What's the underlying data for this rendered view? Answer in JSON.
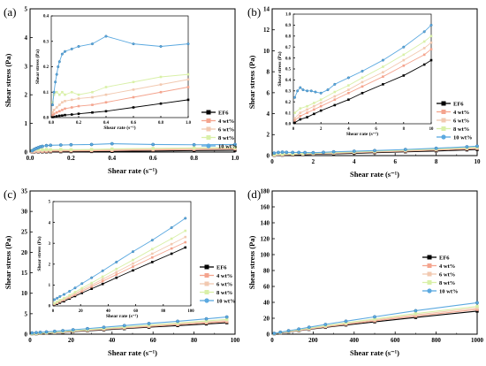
{
  "colors": {
    "EF6": "#000000",
    "4 wt%": "#f4a48e",
    "6 wt%": "#f2c9b0",
    "8 wt%": "#d9f0a8",
    "10 wt%": "#5ba9e0"
  },
  "legend_items": [
    "EF6",
    "4 wt%",
    "6 wt%",
    "8 wt%",
    "10 wt%"
  ],
  "chart_data": [
    {
      "panel": "(a)",
      "type": "line",
      "xlabel": "Shear rate (s⁻¹)",
      "ylabel": "Shear stress (Pa)",
      "xlim": [
        0,
        1.0
      ],
      "ylim": [
        0,
        5.5
      ],
      "xticks": [
        "0.0",
        "0.2",
        "0.4",
        "0.6",
        "0.8",
        "1.0"
      ],
      "yticks": [
        "0",
        "1",
        "2",
        "3",
        "4",
        "5"
      ],
      "series": [
        {
          "name": "EF6",
          "x": [
            0.01,
            0.02,
            0.04,
            0.06,
            0.08,
            0.1,
            0.15,
            0.2,
            0.3,
            0.4,
            0.6,
            0.8,
            1.0
          ],
          "y": [
            0.002,
            0.003,
            0.005,
            0.007,
            0.008,
            0.01,
            0.012,
            0.015,
            0.02,
            0.025,
            0.04,
            0.055,
            0.07
          ]
        },
        {
          "name": "4 wt%",
          "x": [
            0.01,
            0.02,
            0.04,
            0.06,
            0.08,
            0.1,
            0.15,
            0.2,
            0.3,
            0.4,
            0.6,
            0.8,
            1.0
          ],
          "y": [
            0.01,
            0.015,
            0.02,
            0.025,
            0.03,
            0.035,
            0.04,
            0.045,
            0.05,
            0.06,
            0.08,
            0.1,
            0.12
          ]
        },
        {
          "name": "6 wt%",
          "x": [
            0.01,
            0.02,
            0.04,
            0.06,
            0.08,
            0.1,
            0.15,
            0.2,
            0.3,
            0.4,
            0.6,
            0.8,
            1.0
          ],
          "y": [
            0.02,
            0.03,
            0.04,
            0.05,
            0.06,
            0.065,
            0.07,
            0.075,
            0.08,
            0.09,
            0.11,
            0.13,
            0.15
          ]
        },
        {
          "name": "8 wt%",
          "x": [
            0.01,
            0.02,
            0.04,
            0.06,
            0.08,
            0.1,
            0.15,
            0.2,
            0.3,
            0.4,
            0.6,
            0.8,
            1.0
          ],
          "y": [
            0.06,
            0.09,
            0.1,
            0.09,
            0.1,
            0.09,
            0.1,
            0.09,
            0.1,
            0.12,
            0.14,
            0.16,
            0.17
          ]
        },
        {
          "name": "10 wt%",
          "x": [
            0.01,
            0.02,
            0.03,
            0.04,
            0.05,
            0.06,
            0.08,
            0.1,
            0.15,
            0.2,
            0.3,
            0.4,
            0.6,
            0.8,
            1.0
          ],
          "y": [
            0.05,
            0.1,
            0.14,
            0.17,
            0.2,
            0.22,
            0.25,
            0.26,
            0.27,
            0.28,
            0.29,
            0.32,
            0.29,
            0.28,
            0.29
          ]
        }
      ],
      "inset": {
        "xlabel": "Shear rate (s⁻¹)",
        "ylabel": "Shear stress (Pa)",
        "xlim": [
          0,
          1.0
        ],
        "ylim": [
          0,
          0.4
        ],
        "xticks": [
          "0.0",
          "0.2",
          "0.4",
          "0.6",
          "0.8",
          "1.0"
        ],
        "yticks": [
          "0.0",
          "0.1",
          "0.2",
          "0.3",
          "0.4"
        ]
      },
      "legend": "bottom-right"
    },
    {
      "panel": "(b)",
      "type": "line",
      "xlabel": "Shear rate (s⁻¹)",
      "ylabel": "Shear stress (Pa)",
      "xlim": [
        0,
        10
      ],
      "ylim": [
        0,
        14
      ],
      "xticks": [
        "0",
        "2",
        "4",
        "6",
        "8",
        "10"
      ],
      "yticks": [
        "0",
        "2",
        "4",
        "6",
        "8",
        "10",
        "12",
        "14"
      ],
      "series": [
        {
          "name": "EF6",
          "x": [
            0.1,
            0.5,
            1,
            1.5,
            2,
            3,
            4,
            5,
            6.5,
            8,
            9.5,
            10
          ],
          "y": [
            0.01,
            0.04,
            0.06,
            0.09,
            0.12,
            0.17,
            0.22,
            0.28,
            0.36,
            0.44,
            0.54,
            0.58
          ]
        },
        {
          "name": "4 wt%",
          "x": [
            0.1,
            0.5,
            1,
            1.5,
            2,
            3,
            4,
            5,
            6.5,
            8,
            9.5,
            10
          ],
          "y": [
            0.03,
            0.07,
            0.1,
            0.13,
            0.16,
            0.22,
            0.28,
            0.34,
            0.43,
            0.53,
            0.63,
            0.68
          ]
        },
        {
          "name": "6 wt%",
          "x": [
            0.1,
            0.5,
            1,
            1.5,
            2,
            3,
            4,
            5,
            6.5,
            8,
            9.5,
            10
          ],
          "y": [
            0.05,
            0.1,
            0.13,
            0.16,
            0.19,
            0.25,
            0.31,
            0.38,
            0.47,
            0.58,
            0.69,
            0.74
          ]
        },
        {
          "name": "8 wt%",
          "x": [
            0.1,
            0.5,
            1,
            1.5,
            2,
            3,
            4,
            5,
            6.5,
            8,
            9.5,
            10
          ],
          "y": [
            0.1,
            0.14,
            0.16,
            0.19,
            0.22,
            0.29,
            0.35,
            0.42,
            0.52,
            0.63,
            0.75,
            0.8
          ]
        },
        {
          "name": "10 wt%",
          "x": [
            0.1,
            0.3,
            0.5,
            0.7,
            1,
            1.3,
            1.6,
            2,
            2.5,
            3,
            4,
            5,
            6.5,
            8,
            9.5,
            10
          ],
          "y": [
            0.24,
            0.3,
            0.33,
            0.31,
            0.3,
            0.3,
            0.29,
            0.28,
            0.31,
            0.36,
            0.42,
            0.48,
            0.58,
            0.7,
            0.84,
            0.9
          ]
        }
      ],
      "inset": {
        "xlabel": "Shear rate (s⁻¹)",
        "ylabel": "Shear stress (Pa)",
        "xlim": [
          0,
          10
        ],
        "ylim": [
          0,
          1.0
        ],
        "xticks": [
          "0",
          "2",
          "4",
          "6",
          "8",
          "10"
        ],
        "yticks": [
          "0.0",
          "0.1",
          "0.2",
          "0.3",
          "0.4",
          "0.5",
          "0.6",
          "0.7",
          "0.8",
          "0.9",
          "1.0"
        ]
      },
      "legend": "right"
    },
    {
      "panel": "(c)",
      "type": "line",
      "xlabel": "Shear rate (s⁻¹)",
      "ylabel": "Shear stress (Pa)",
      "xlim": [
        0,
        100
      ],
      "ylim": [
        0,
        35
      ],
      "xticks": [
        "0",
        "20",
        "40",
        "60",
        "80",
        "100"
      ],
      "yticks": [
        "0",
        "5",
        "10",
        "15",
        "20",
        "25",
        "30",
        "35"
      ],
      "series": [
        {
          "name": "EF6",
          "x": [
            1,
            3,
            5,
            8,
            12,
            16,
            21,
            28,
            36,
            46,
            58,
            72,
            86,
            96
          ],
          "y": [
            0.05,
            0.1,
            0.15,
            0.22,
            0.35,
            0.47,
            0.62,
            0.82,
            1.05,
            1.35,
            1.7,
            2.1,
            2.5,
            2.8
          ]
        },
        {
          "name": "4 wt%",
          "x": [
            1,
            3,
            5,
            8,
            12,
            16,
            21,
            28,
            36,
            46,
            58,
            72,
            86,
            96
          ],
          "y": [
            0.08,
            0.14,
            0.2,
            0.28,
            0.4,
            0.53,
            0.7,
            0.92,
            1.18,
            1.5,
            1.88,
            2.32,
            2.75,
            3.05
          ]
        },
        {
          "name": "6 wt%",
          "x": [
            1,
            3,
            5,
            8,
            12,
            16,
            21,
            28,
            36,
            46,
            58,
            72,
            86,
            96
          ],
          "y": [
            0.1,
            0.17,
            0.24,
            0.32,
            0.45,
            0.59,
            0.77,
            1.0,
            1.28,
            1.62,
            2.03,
            2.5,
            2.96,
            3.3
          ]
        },
        {
          "name": "8 wt%",
          "x": [
            1,
            3,
            5,
            8,
            12,
            16,
            21,
            28,
            36,
            46,
            58,
            72,
            86,
            96
          ],
          "y": [
            0.13,
            0.2,
            0.28,
            0.37,
            0.51,
            0.66,
            0.85,
            1.1,
            1.4,
            1.77,
            2.2,
            2.72,
            3.22,
            3.6
          ]
        },
        {
          "name": "10 wt%",
          "x": [
            1,
            3,
            5,
            8,
            12,
            16,
            21,
            28,
            36,
            46,
            58,
            72,
            86,
            96
          ],
          "y": [
            0.3,
            0.37,
            0.45,
            0.55,
            0.7,
            0.86,
            1.07,
            1.35,
            1.68,
            2.1,
            2.6,
            3.15,
            3.75,
            4.2
          ]
        }
      ],
      "inset": {
        "xlabel": "Shear rate (s⁻¹)",
        "ylabel": "Shear stress (Pa)",
        "xlim": [
          0,
          100
        ],
        "ylim": [
          0,
          5
        ],
        "xticks": [
          "0",
          "20",
          "40",
          "60",
          "80",
          "100"
        ],
        "yticks": [
          "0",
          "1",
          "2",
          "3",
          "4",
          "5"
        ]
      },
      "legend": "bottom-right"
    },
    {
      "panel": "(d)",
      "type": "line",
      "xlabel": "Shear rate (s⁻¹)",
      "ylabel": "Shear stress (Pa)",
      "xlim": [
        0,
        1000
      ],
      "ylim": [
        0,
        180
      ],
      "xticks": [
        "0",
        "200",
        "400",
        "600",
        "800",
        "1000"
      ],
      "yticks": [
        "0",
        "20",
        "40",
        "60",
        "80",
        "100",
        "120",
        "140",
        "160",
        "180"
      ],
      "series": [
        {
          "name": "EF6",
          "x": [
            10,
            40,
            80,
            130,
            180,
            260,
            360,
            500,
            700,
            1000
          ],
          "y": [
            0.5,
            1.5,
            2.8,
            4.3,
            6,
            8.5,
            11.5,
            15.5,
            21,
            29
          ]
        },
        {
          "name": "4 wt%",
          "x": [
            10,
            40,
            80,
            130,
            180,
            260,
            360,
            500,
            700,
            1000
          ],
          "y": [
            0.6,
            1.7,
            3.1,
            4.7,
            6.5,
            9.2,
            12.4,
            16.7,
            22.7,
            31
          ]
        },
        {
          "name": "6 wt%",
          "x": [
            10,
            40,
            80,
            130,
            180,
            260,
            360,
            500,
            700,
            1000
          ],
          "y": [
            0.7,
            1.9,
            3.4,
            5.1,
            7,
            9.9,
            13.3,
            17.9,
            24.3,
            33
          ]
        },
        {
          "name": "8 wt%",
          "x": [
            10,
            40,
            80,
            130,
            180,
            260,
            360,
            500,
            700,
            1000
          ],
          "y": [
            0.8,
            2.1,
            3.7,
            5.5,
            7.5,
            10.6,
            14.2,
            19.1,
            25.9,
            35
          ]
        },
        {
          "name": "10 wt%",
          "x": [
            10,
            40,
            80,
            130,
            180,
            260,
            360,
            500,
            700,
            1000
          ],
          "y": [
            1,
            2.5,
            4.3,
            6.4,
            8.7,
            12.2,
            16.3,
            21.8,
            29.5,
            39.5
          ]
        }
      ],
      "legend": "middle-right"
    }
  ]
}
